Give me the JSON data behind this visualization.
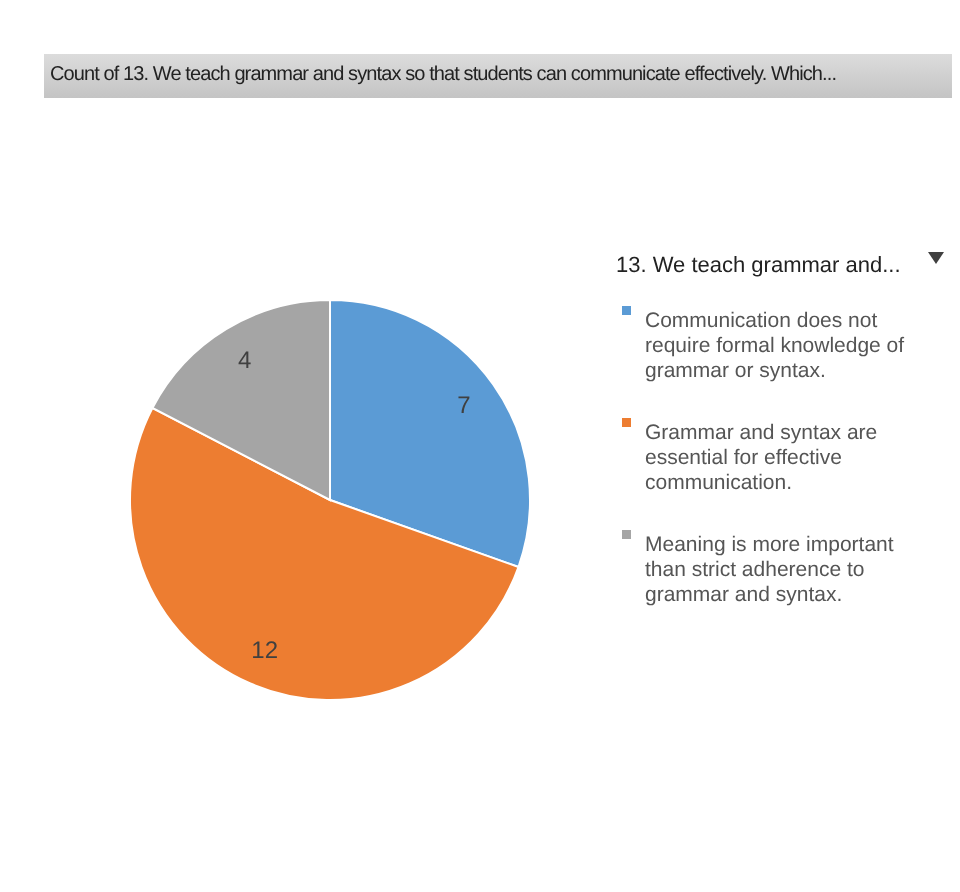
{
  "chart_data": {
    "type": "pie",
    "title": "Count of 13. We teach  grammar and syntax so that students can communicate effectively.  Which...",
    "legend_title": "13. We teach  grammar and...",
    "categories": [
      "Communication does not require formal knowledge of grammar or syntax.",
      "Grammar and syntax are essential for effective communication.",
      "Meaning is more important than strict adherence to grammar and syntax."
    ],
    "values": [
      7,
      12,
      4
    ],
    "colors": [
      "#5b9bd5",
      "#ed7d31",
      "#a5a5a5"
    ],
    "data_labels": true,
    "legend": "right"
  }
}
